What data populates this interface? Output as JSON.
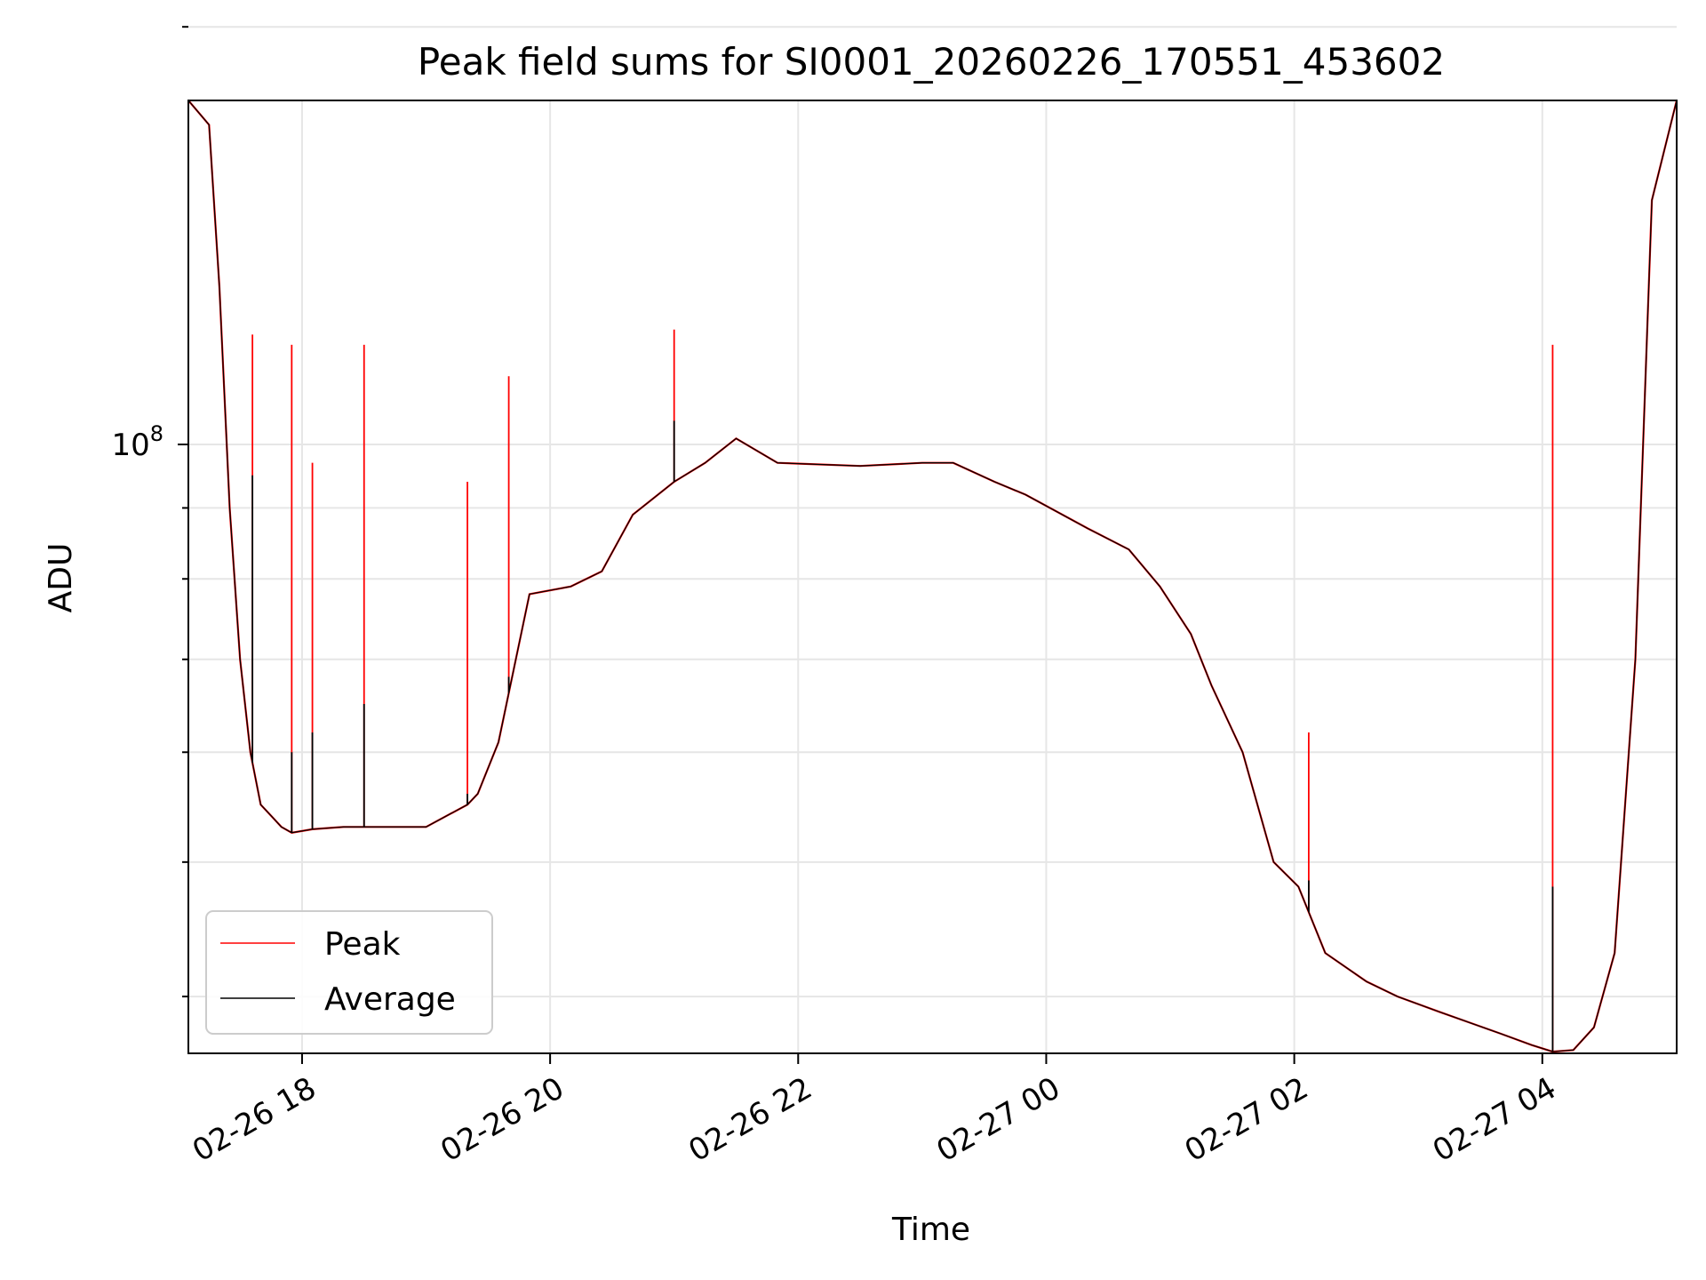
{
  "chart_data": {
    "type": "line",
    "title": "Peak field sums for SI0001_20260226_170551_453602",
    "xlabel": "Time",
    "ylabel": "ADU",
    "y_scale": "log",
    "ylim": [
      36400000,
      177000000
    ],
    "xlim": [
      "2026-02-26 17:05",
      "2026-02-27 05:05"
    ],
    "grid": true,
    "legend_position": "lower-left",
    "x_ticks": [
      "2026-02-26 18:00",
      "2026-02-26 20:00",
      "2026-02-26 22:00",
      "2026-02-27 00:00",
      "2026-02-27 02:00",
      "2026-02-27 04:00"
    ],
    "x_tick_labels": [
      "02-26 18",
      "02-26 20",
      "02-26 22",
      "02-27 00",
      "02-27 02",
      "02-27 04"
    ],
    "y_major_tick_label": {
      "base": "10",
      "exp": "8",
      "value": 100000000
    },
    "y_minor_ticks": [
      40000000,
      50000000,
      60000000,
      70000000,
      80000000,
      90000000,
      200000000
    ],
    "series": [
      {
        "name": "Peak",
        "color": "#ff0000",
        "style": "thin-line"
      },
      {
        "name": "Average",
        "color": "#000000",
        "style": "thin-line",
        "x": [
          "2026-02-26 17:05",
          "2026-02-26 17:15",
          "2026-02-26 17:20",
          "2026-02-26 17:25",
          "2026-02-26 17:30",
          "2026-02-26 17:35",
          "2026-02-26 17:40",
          "2026-02-26 17:45",
          "2026-02-26 17:50",
          "2026-02-26 17:55",
          "2026-02-26 18:05",
          "2026-02-26 18:20",
          "2026-02-26 18:40",
          "2026-02-26 19:00",
          "2026-02-26 19:20",
          "2026-02-26 19:25",
          "2026-02-26 19:35",
          "2026-02-26 19:50",
          "2026-02-26 20:10",
          "2026-02-26 20:25",
          "2026-02-26 20:40",
          "2026-02-26 21:00",
          "2026-02-26 21:15",
          "2026-02-26 21:30",
          "2026-02-26 21:50",
          "2026-02-26 22:30",
          "2026-02-26 23:00",
          "2026-02-26 23:15",
          "2026-02-26 23:35",
          "2026-02-26 23:50",
          "2026-02-27 00:20",
          "2026-02-27 00:40",
          "2026-02-27 00:55",
          "2026-02-27 01:10",
          "2026-02-27 01:20",
          "2026-02-27 01:35",
          "2026-02-27 01:50",
          "2026-02-27 02:02",
          "2026-02-27 02:15",
          "2026-02-27 02:35",
          "2026-02-27 02:50",
          "2026-02-27 03:10",
          "2026-02-27 03:40",
          "2026-02-27 03:55",
          "2026-02-27 04:05",
          "2026-02-27 04:15",
          "2026-02-27 04:25",
          "2026-02-27 04:35",
          "2026-02-27 04:45",
          "2026-02-27 04:53",
          "2026-02-27 05:05"
        ],
        "y": [
          177000000,
          170000000,
          130000000,
          90000000,
          70000000,
          60000000,
          55000000,
          54000000,
          53000000,
          52500000,
          52800000,
          53000000,
          53000000,
          53000000,
          55000000,
          56000000,
          61000000,
          78000000,
          79000000,
          81000000,
          89000000,
          94000000,
          97000000,
          101000000,
          97000000,
          96500000,
          97000000,
          97000000,
          94000000,
          92000000,
          87000000,
          84000000,
          79000000,
          73000000,
          67000000,
          60000000,
          50000000,
          48000000,
          43000000,
          41000000,
          40000000,
          39000000,
          37600000,
          36900000,
          36500000,
          36600000,
          38000000,
          43000000,
          70000000,
          150000000,
          177000000
        ]
      }
    ],
    "spikes": [
      {
        "x": "2026-02-26 17:36",
        "peak": 120000000,
        "average": 95000000
      },
      {
        "x": "2026-02-26 17:55",
        "peak": 118000000,
        "average": 60000000
      },
      {
        "x": "2026-02-26 18:05",
        "peak": 97000000,
        "average": 62000000
      },
      {
        "x": "2026-02-26 18:30",
        "peak": 118000000,
        "average": 65000000
      },
      {
        "x": "2026-02-26 19:20",
        "peak": 94000000,
        "average": 56000000
      },
      {
        "x": "2026-02-26 19:40",
        "peak": 112000000,
        "average": 68000000
      },
      {
        "x": "2026-02-26 21:00",
        "peak": 121000000,
        "average": 104000000
      },
      {
        "x": "2026-02-27 02:07",
        "peak": 62000000,
        "average": 48500000
      },
      {
        "x": "2026-02-27 04:05",
        "peak": 118000000,
        "average": 48000000
      }
    ]
  }
}
